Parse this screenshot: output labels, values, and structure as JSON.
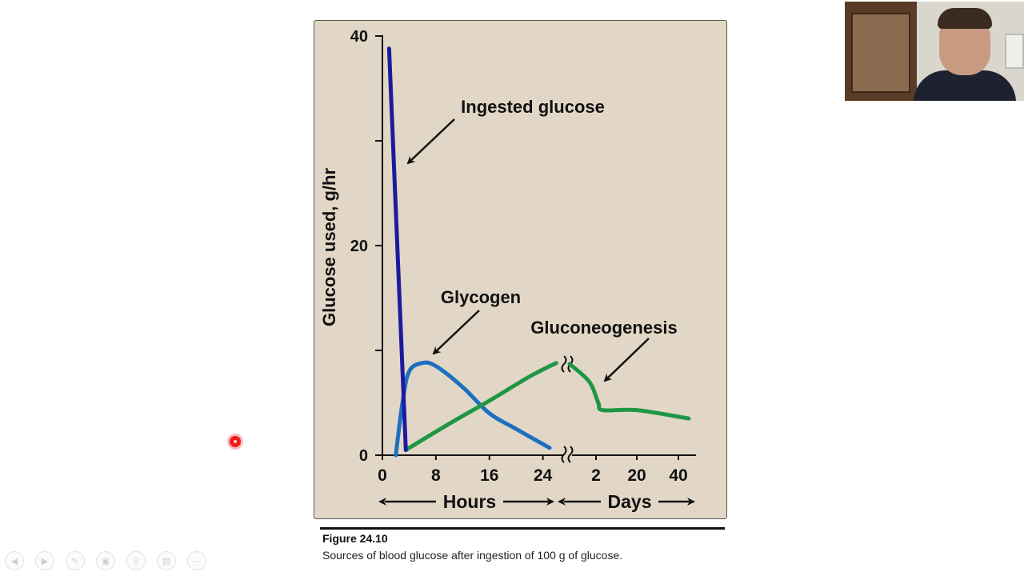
{
  "chart_data": {
    "type": "line",
    "ylabel": "Glucose used, g/hr",
    "ylim": [
      0,
      40
    ],
    "y_ticks": [
      "0",
      "20",
      "40"
    ],
    "y_minor_ticks": [
      10,
      30
    ],
    "axis_segments": [
      {
        "label": "Hours",
        "unit": "hours",
        "xlim": [
          0,
          26
        ],
        "ticks": [
          "0",
          "8",
          "16",
          "24"
        ]
      },
      {
        "label": "Days",
        "unit": "days",
        "ticks": [
          "2",
          "20",
          "40"
        ]
      }
    ],
    "series": [
      {
        "name": "Ingested glucose",
        "color": "#1e1aa0",
        "segment": "hours",
        "points": [
          [
            1,
            38.8
          ],
          [
            3.5,
            0.5
          ]
        ]
      },
      {
        "name": "Glycogen",
        "color": "#1d6fbf",
        "segment": "hours",
        "points": [
          [
            2,
            0
          ],
          [
            3,
            5
          ],
          [
            4,
            8
          ],
          [
            6,
            8.8
          ],
          [
            8,
            8.5
          ],
          [
            12,
            6.5
          ],
          [
            16,
            4
          ],
          [
            20,
            2.5
          ],
          [
            25,
            0.7
          ]
        ]
      },
      {
        "name": "Gluconeogenesis",
        "color": "#1e9645",
        "segment": "hours",
        "points": [
          [
            3.5,
            0.5
          ],
          [
            10,
            3
          ],
          [
            16,
            5.2
          ],
          [
            22,
            7.5
          ],
          [
            26,
            8.8
          ]
        ]
      },
      {
        "name": "Gluconeogenesis",
        "color": "#1e9645",
        "segment": "days",
        "show_label": false,
        "points": [
          [
            0,
            8.7
          ],
          [
            1.5,
            7
          ],
          [
            3,
            5
          ],
          [
            5,
            4.3
          ],
          [
            20,
            4.3
          ],
          [
            45,
            3.5
          ]
        ]
      }
    ]
  },
  "caption": {
    "title": "Figure 24.10",
    "text": "Sources of blood glucose after ingestion of 100 g of glucose."
  },
  "webcam": {
    "label": "presenter-video"
  },
  "toolbar": {
    "icons": [
      "back-icon",
      "forward-icon",
      "pen-icon",
      "slides-icon",
      "zoom-icon",
      "subtitles-icon",
      "more-icon"
    ]
  },
  "colors": {
    "panel": "#e2d7c6",
    "axis": "#111111",
    "recording": "#ee1c1c"
  }
}
